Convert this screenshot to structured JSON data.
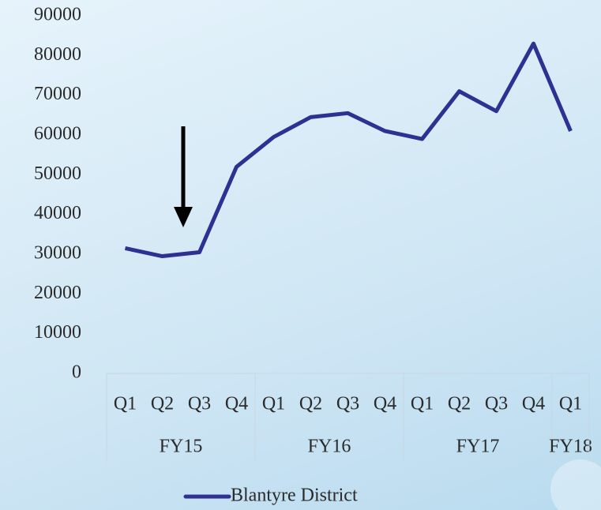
{
  "chart_data": {
    "type": "line",
    "categories": [
      "Q1",
      "Q2",
      "Q3",
      "Q4",
      "Q1",
      "Q2",
      "Q3",
      "Q4",
      "Q1",
      "Q2",
      "Q3",
      "Q4",
      "Q1"
    ],
    "groups": [
      {
        "label": "FY15",
        "span": 4
      },
      {
        "label": "FY16",
        "span": 4
      },
      {
        "label": "FY17",
        "span": 4
      },
      {
        "label": "FY18",
        "span": 1
      }
    ],
    "series": [
      {
        "name": "Blantyre District",
        "color": "#2e3192",
        "values": [
          31500,
          29500,
          30500,
          52000,
          59500,
          64500,
          65500,
          61000,
          59000,
          71000,
          66000,
          83000,
          61000
        ]
      }
    ],
    "ylim": [
      0,
      90000
    ],
    "yticks": [
      0,
      10000,
      20000,
      30000,
      40000,
      50000,
      60000,
      70000,
      80000,
      90000
    ],
    "legend": "bottom"
  }
}
